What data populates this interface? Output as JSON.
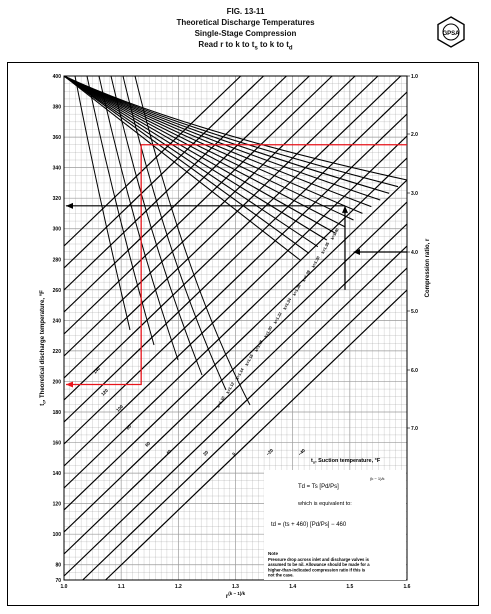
{
  "figure": {
    "number": "FIG. 13-11",
    "title": "Theoretical Discharge Temperatures",
    "subtitle": "Single-Stage Compression",
    "instruction": "Read r to k to t",
    "logo_text": "GPSA"
  },
  "chart_data": {
    "type": "nomogram",
    "ylabel_left": "t",
    "ylabel_left_rest": ", Theoretical discharge temperature, °F",
    "ylabel_right": "Compression ratio, r",
    "xlabel": "r",
    "xlabel_exp": "(k − 1)/k",
    "ylim_left": [
      70,
      400
    ],
    "y_left_ticks": [
      "400",
      "380",
      "360",
      "340",
      "320",
      "300",
      "280",
      "260",
      "240",
      "220",
      "200",
      "180",
      "160",
      "140",
      "120",
      "100",
      "80",
      "70"
    ],
    "x_ticks": [
      "1.0",
      "1.1",
      "1.2",
      "1.3",
      "1.4",
      "1.5",
      "1.6"
    ],
    "xlim": [
      1.0,
      1.6
    ],
    "right_ticks": [
      "1.0",
      "2.0",
      "3.0",
      "4.0",
      "5.0",
      "6.0",
      "7.0"
    ],
    "k_curves": [
      "k=1.40",
      "k=1.35",
      "k=1.30",
      "k=1.28",
      "k=1.26",
      "k=1.24",
      "k=1.22",
      "k=1.20",
      "k=1.18",
      "k=1.16",
      "k=1.14",
      "k=1.12",
      "k=1.10"
    ],
    "suction_lines": [
      "140",
      "120",
      "100",
      "80",
      "60",
      "40",
      "20",
      "0",
      "−20",
      "−40"
    ],
    "suction_label": "t",
    "suction_label_rest": ", Suction temperature, °F",
    "example_path": {
      "x": 1.135,
      "t_d": 198,
      "t_d_upper": 355
    }
  },
  "formula": {
    "line1_lhs": "T",
    "line1_rhs": "= T",
    "line1_exp": "(k − 1)/k",
    "equiv": "which is equivalent to:",
    "line2_pre": "t",
    "line2_mid": "= (t",
    "line2_plus": "+ 460)",
    "line2_minus": "− 460"
  },
  "note": {
    "heading": "Note",
    "text": "Pressure drop across inlet and discharge valves is assumed to be nil. Allowance should be made for a higher-than-indicated compression ratio if this is not the case."
  },
  "colors": {
    "grid": "#9a9a9a",
    "curve": "#000000",
    "path": "#e8141b"
  }
}
